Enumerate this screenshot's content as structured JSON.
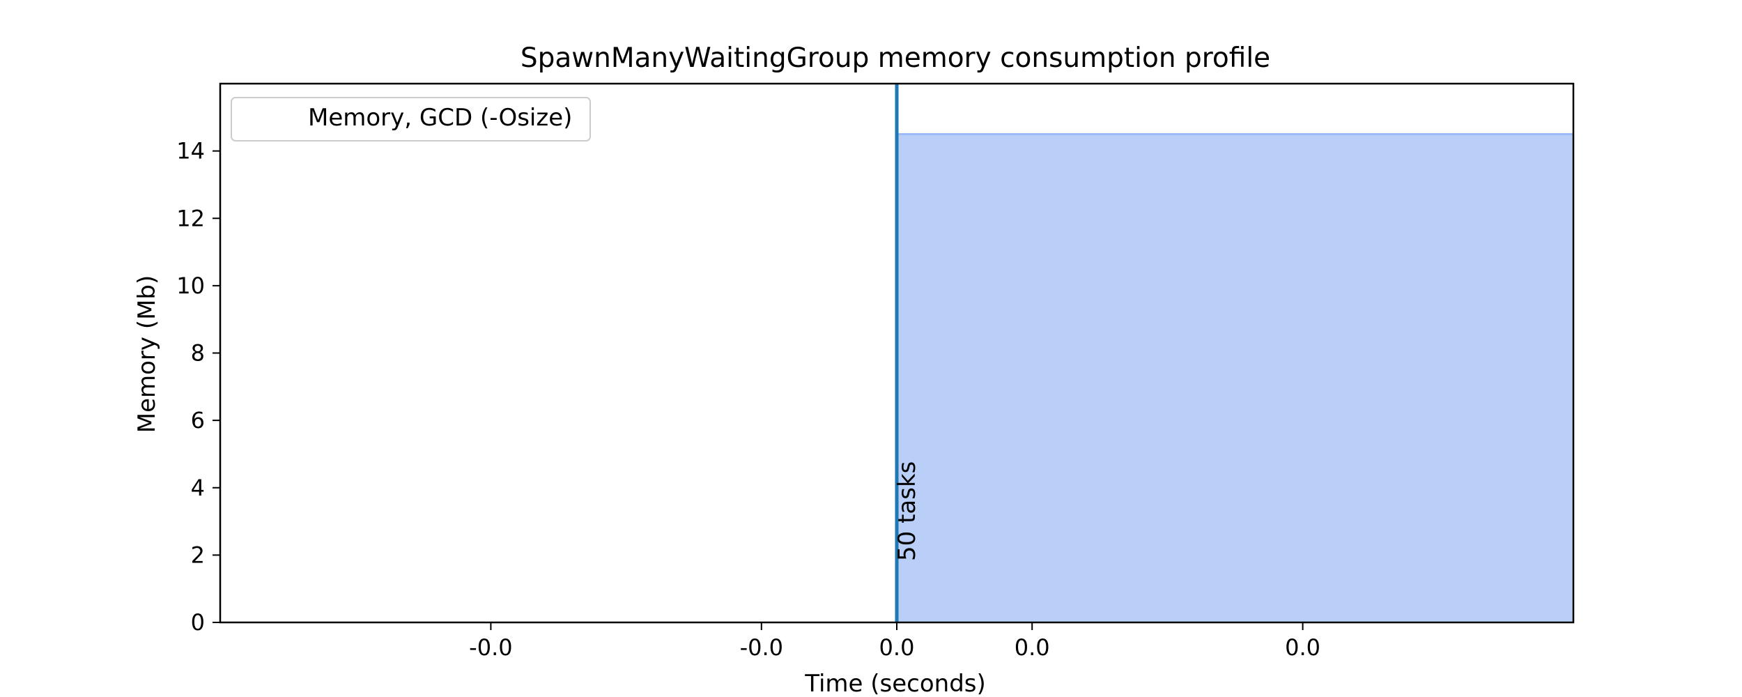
{
  "chart_data": {
    "type": "area",
    "title": "SpawnManyWaitingGroup memory consumption profile",
    "xlabel": "Time (seconds)",
    "ylabel": "Memory (Mb)",
    "xlim": [
      -0.0025,
      0.0025
    ],
    "ylim": [
      0,
      16
    ],
    "x_ticks": [
      -0.0015,
      -0.0005,
      0.0,
      0.0005,
      0.0015
    ],
    "x_tick_labels": [
      "-0.0",
      "-0.0",
      "0.0",
      "0.0",
      "0.0"
    ],
    "y_ticks": [
      0,
      2,
      4,
      6,
      8,
      10,
      12,
      14
    ],
    "y_tick_labels": [
      "0",
      "2",
      "4",
      "6",
      "8",
      "10",
      "12",
      "14"
    ],
    "grid": false,
    "legend_placement": "top-left",
    "series": [
      {
        "name": "Memory, GCD (-Osize)",
        "color": "#b9cff8",
        "edge_color": "#9dbbf4",
        "x": [
          0.0,
          0.0025
        ],
        "y": [
          14.5,
          14.5
        ]
      }
    ],
    "markers": [
      {
        "x": 0.0,
        "label": "50 tasks",
        "color": "#1f77b4"
      }
    ]
  }
}
